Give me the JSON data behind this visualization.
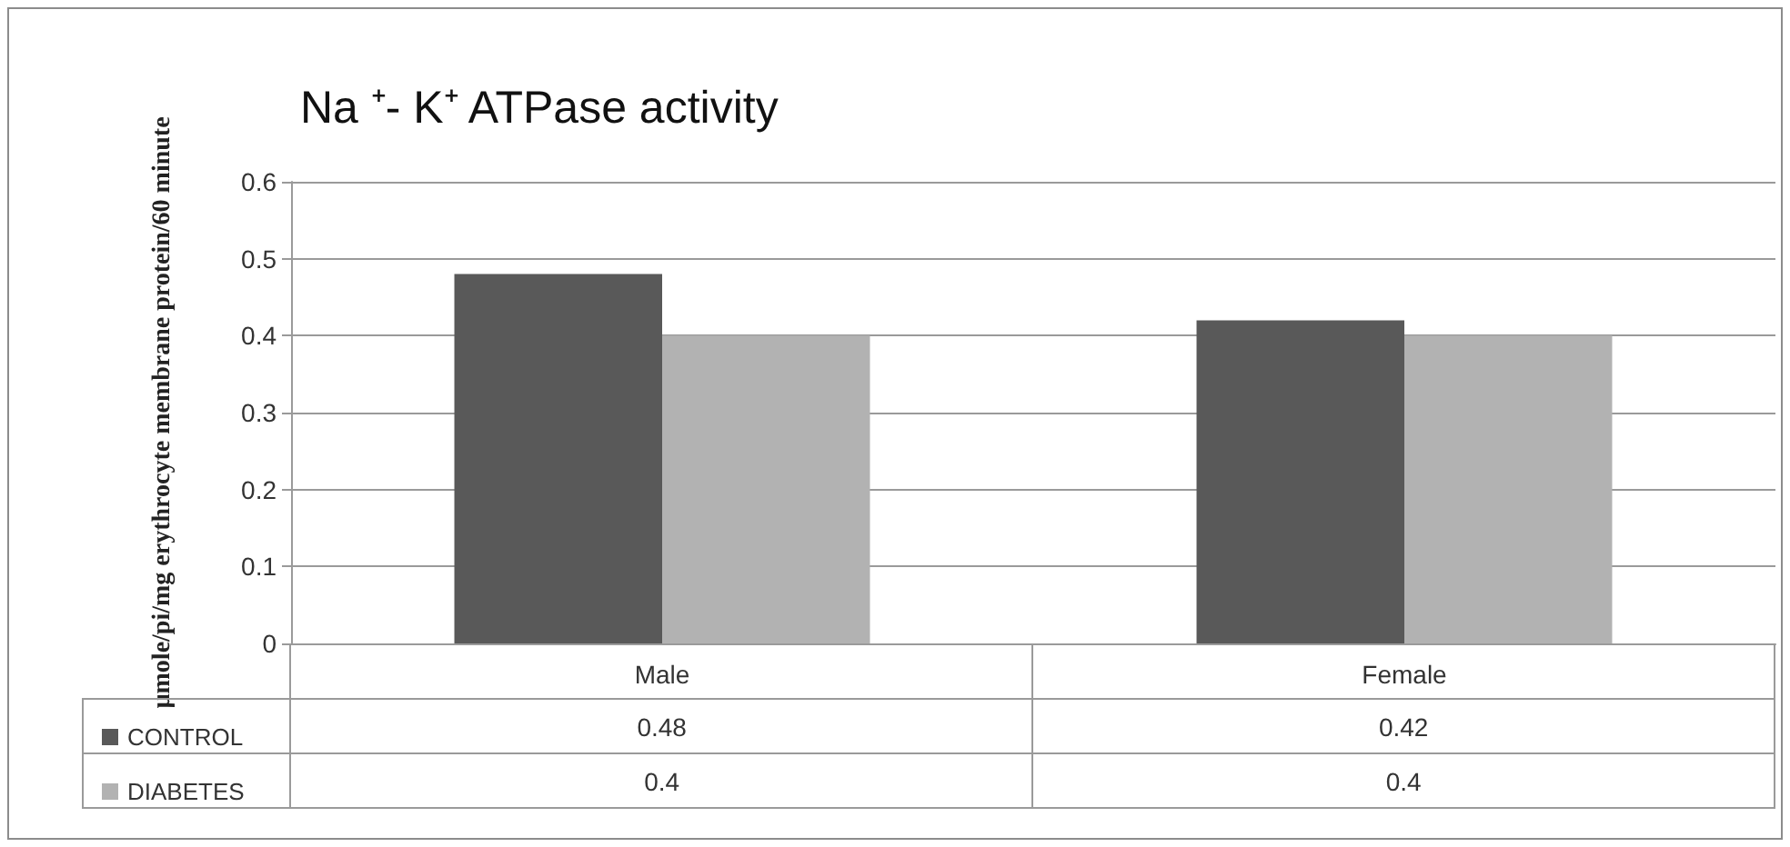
{
  "chart_data": {
    "type": "bar",
    "title": "Na ⁺- K⁺ ATPase activity",
    "ylabel": "µmole/pi/mg erythrocyte membrane protein/60 minute",
    "categories": [
      "Male",
      "Female"
    ],
    "series": [
      {
        "name": "CONTROL",
        "color": "#595959",
        "values": [
          0.48,
          0.42
        ]
      },
      {
        "name": "DIABETES",
        "color": "#b2b2b2",
        "values": [
          0.4,
          0.4
        ]
      }
    ],
    "ylim": [
      0,
      0.6
    ],
    "yticks": [
      0,
      0.1,
      0.2,
      0.3,
      0.4,
      0.5,
      0.6
    ],
    "grid": "y",
    "legend": "bottom left",
    "data_labels": true
  }
}
